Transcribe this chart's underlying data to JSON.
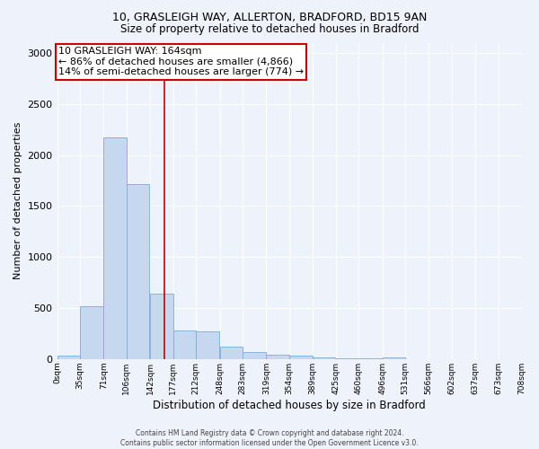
{
  "title_line1": "10, GRASLEIGH WAY, ALLERTON, BRADFORD, BD15 9AN",
  "title_line2": "Size of property relative to detached houses in Bradford",
  "xlabel": "Distribution of detached houses by size in Bradford",
  "ylabel": "Number of detached properties",
  "footer_line1": "Contains HM Land Registry data © Crown copyright and database right 2024.",
  "footer_line2": "Contains public sector information licensed under the Open Government Licence v3.0.",
  "annotation_line1": "10 GRASLEIGH WAY: 164sqm",
  "annotation_line2": "← 86% of detached houses are smaller (4,866)",
  "annotation_line3": "14% of semi-detached houses are larger (774) →",
  "bin_starts": [
    0,
    35,
    71,
    106,
    142,
    177,
    212,
    248,
    283,
    319,
    354,
    389,
    425,
    460,
    496,
    531,
    566,
    602,
    637,
    673
  ],
  "bin_width": 35,
  "bar_heights": [
    30,
    520,
    2175,
    1710,
    640,
    280,
    275,
    125,
    70,
    40,
    30,
    20,
    10,
    5,
    20,
    0,
    0,
    0,
    0,
    0
  ],
  "bar_color": "#c5d8f0",
  "bar_edge_color": "#7aadd4",
  "vline_color": "#cc0000",
  "vline_x": 164,
  "ylim": [
    0,
    3100
  ],
  "yticks": [
    0,
    500,
    1000,
    1500,
    2000,
    2500,
    3000
  ],
  "xtick_labels": [
    "0sqm",
    "35sqm",
    "71sqm",
    "106sqm",
    "142sqm",
    "177sqm",
    "212sqm",
    "248sqm",
    "283sqm",
    "319sqm",
    "354sqm",
    "389sqm",
    "425sqm",
    "460sqm",
    "496sqm",
    "531sqm",
    "566sqm",
    "602sqm",
    "637sqm",
    "673sqm",
    "708sqm"
  ],
  "background_color": "#eef2fb",
  "grid_color": "#ffffff",
  "annotation_box_facecolor": "#ffffff",
  "annotation_box_edgecolor": "#cc0000",
  "title1_fontsize": 9,
  "title2_fontsize": 8.5,
  "ylabel_fontsize": 8,
  "xlabel_fontsize": 8.5,
  "ytick_fontsize": 8,
  "xtick_fontsize": 6.5,
  "annotation_fontsize": 8,
  "footer_fontsize": 5.5
}
